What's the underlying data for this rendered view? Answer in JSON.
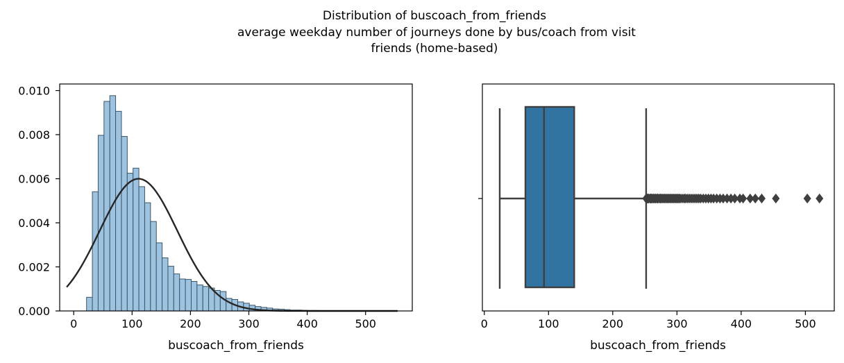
{
  "figure_title": {
    "lines": [
      "Distribution of buscoach_from_friends",
      "average weekday number of journeys done by bus/coach from visit",
      "friends (home-based)"
    ]
  },
  "chart_data": [
    {
      "type": "histogram",
      "xlabel": "buscoach_from_friends",
      "ylabel": "",
      "xlim": [
        -24,
        580
      ],
      "ylim": [
        0,
        0.0103
      ],
      "xticks": [
        0,
        100,
        200,
        300,
        400,
        500
      ],
      "yticks": [
        0.0,
        0.002,
        0.004,
        0.006,
        0.008,
        0.01
      ],
      "ytick_labels": [
        "0.000",
        "0.002",
        "0.004",
        "0.006",
        "0.008",
        "0.010"
      ],
      "bar_color": "#9ec3e0",
      "bar_edge_color": "#3a5566",
      "bin_width": 9.96,
      "bin_start": 22,
      "densities": [
        0.00062,
        0.00541,
        0.00797,
        0.00951,
        0.00977,
        0.00906,
        0.00792,
        0.00625,
        0.00648,
        0.00564,
        0.00491,
        0.00406,
        0.00309,
        0.00241,
        0.00203,
        0.00168,
        0.00145,
        0.00143,
        0.00134,
        0.00118,
        0.00111,
        0.00104,
        0.00093,
        0.00088,
        0.00057,
        0.00052,
        0.00041,
        0.00035,
        0.00026,
        0.0002,
        0.00016,
        0.00013,
        9e-05,
        8e-05,
        6e-05,
        4e-05,
        4e-05,
        3e-05,
        2e-05,
        2e-05,
        1e-05,
        1e-05,
        1e-05,
        1e-05,
        1e-05,
        1e-05,
        1e-05,
        1e-05,
        1e-05,
        1e-05,
        1e-05,
        1e-05
      ],
      "fit_curve": {
        "type": "normal",
        "mean": 111,
        "std": 66.5,
        "x_range": [
          -12,
          555
        ],
        "color": "#262626"
      }
    },
    {
      "type": "box",
      "xlabel": "buscoach_from_friends",
      "ylabel": "",
      "xlim": [
        -3,
        545
      ],
      "xticks": [
        0,
        100,
        200,
        300,
        400,
        500
      ],
      "box_color": "#3274a1",
      "line_color": "#3f3f3f",
      "min": 24,
      "q1": 64,
      "median": 93,
      "q3": 140,
      "max": 252,
      "outliers": [
        252,
        253,
        254,
        255,
        256,
        258,
        259,
        260,
        261,
        263,
        264,
        266,
        267,
        269,
        270,
        272,
        274,
        275,
        277,
        279,
        281,
        283,
        285,
        287,
        289,
        291,
        293,
        295,
        297,
        299,
        301,
        303,
        305,
        308,
        311,
        313,
        316,
        319,
        322,
        325,
        328,
        331,
        334,
        337,
        341,
        345,
        349,
        353,
        357,
        362,
        367,
        372,
        378,
        384,
        390,
        398,
        403,
        414,
        422,
        432,
        454,
        503,
        522
      ]
    }
  ]
}
